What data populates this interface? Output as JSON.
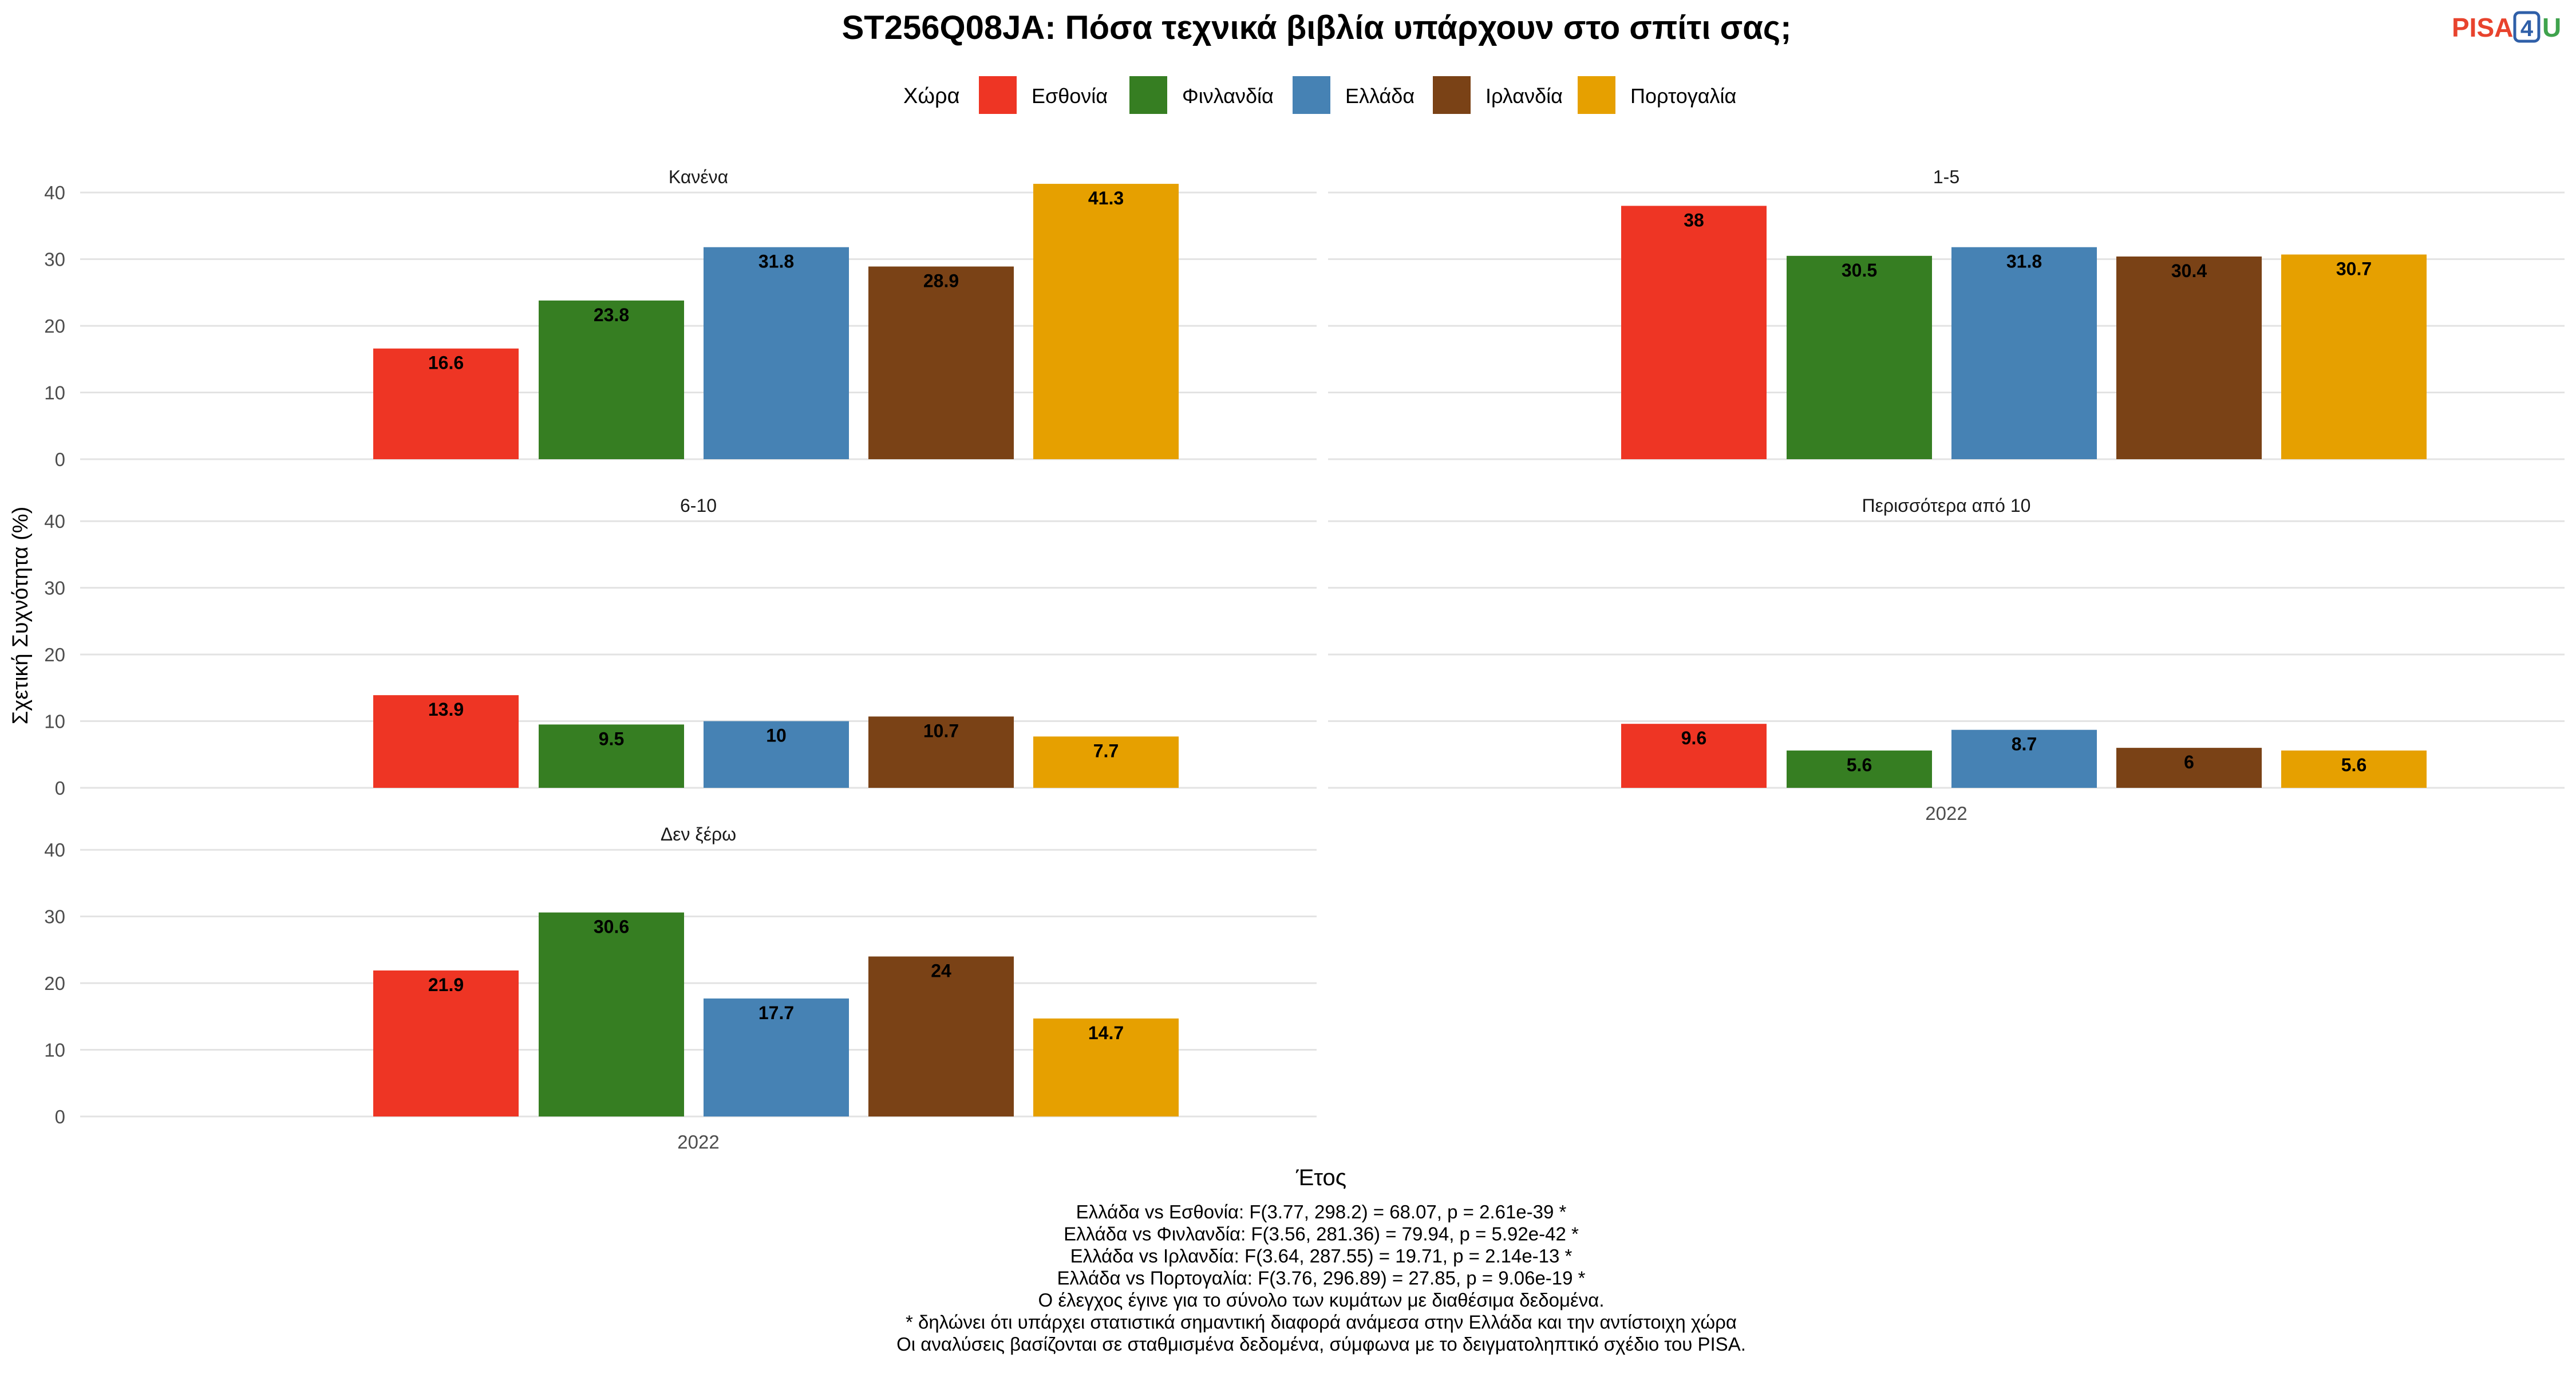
{
  "logo": {
    "text_pisa": "PISA",
    "text_4": "4",
    "text_u": "U"
  },
  "chart_data": {
    "type": "bar",
    "title": "ST256Q08JA: Πόσα τεχνικά βιβλία υπάρχουν στο σπίτι σας;",
    "xlabel": "Έτος",
    "ylabel": "Σχετική Συχνότητα (%)",
    "legend_title": "Χώρα",
    "legend_position": "top",
    "grid": true,
    "ylim": [
      0,
      45
    ],
    "yticks": [
      0,
      10,
      20,
      30,
      40
    ],
    "x": [
      "2022"
    ],
    "series_names": [
      "Εσθονία",
      "Φινλανδία",
      "Ελλάδα",
      "Ιρλανδία",
      "Πορτογαλία"
    ],
    "colors": [
      "#EE3524",
      "#367E22",
      "#4682B4",
      "#7A4216",
      "#E6A000"
    ],
    "panels": [
      {
        "label": "Κανένα",
        "values": [
          16.6,
          23.8,
          31.8,
          28.9,
          41.3
        ],
        "value_labels": [
          "16.6",
          "23.8",
          "31.8",
          "28.9",
          "41.3"
        ]
      },
      {
        "label": "1-5",
        "values": [
          38,
          30.5,
          31.8,
          30.4,
          30.7
        ],
        "value_labels": [
          "38",
          "30.5",
          "31.8",
          "30.4",
          "30.7"
        ]
      },
      {
        "label": "6-10",
        "values": [
          13.9,
          9.5,
          10,
          10.7,
          7.7
        ],
        "value_labels": [
          "13.9",
          "9.5",
          "10",
          "10.7",
          "7.7"
        ]
      },
      {
        "label": "Περισσότερα από 10",
        "values": [
          9.6,
          5.6,
          8.7,
          6,
          5.6
        ],
        "value_labels": [
          "9.6",
          "5.6",
          "8.7",
          "6",
          "5.6"
        ]
      },
      {
        "label": "Δεν ξέρω",
        "values": [
          21.9,
          30.6,
          17.7,
          24,
          14.7
        ],
        "value_labels": [
          "21.9",
          "30.6",
          "17.7",
          "24",
          "14.7"
        ]
      }
    ],
    "footnotes": [
      "Ελλάδα vs Εσθονία: F(3.77, 298.2) = 68.07, p = 2.61e-39 *",
      "Ελλάδα vs Φινλανδία: F(3.56, 281.36) = 79.94, p = 5.92e-42 *",
      "Ελλάδα vs Ιρλανδία: F(3.64, 287.55) = 19.71, p = 2.14e-13 *",
      "Ελλάδα vs Πορτογαλία: F(3.76, 296.89) = 27.85, p = 9.06e-19 *",
      "Ο έλεγχος έγινε για το σύνολο των κυμάτων με διαθέσιμα δεδομένα.",
      "* δηλώνει ότι υπάρχει στατιστικά σημαντική διαφορά ανάμεσα στην Ελλάδα και την αντίστοιχη χώρα",
      "Οι αναλύσεις βασίζονται σε σταθμισμένα δεδομένα, σύμφωνα με το δειγματοληπτικό σχέδιο του PISA."
    ]
  }
}
